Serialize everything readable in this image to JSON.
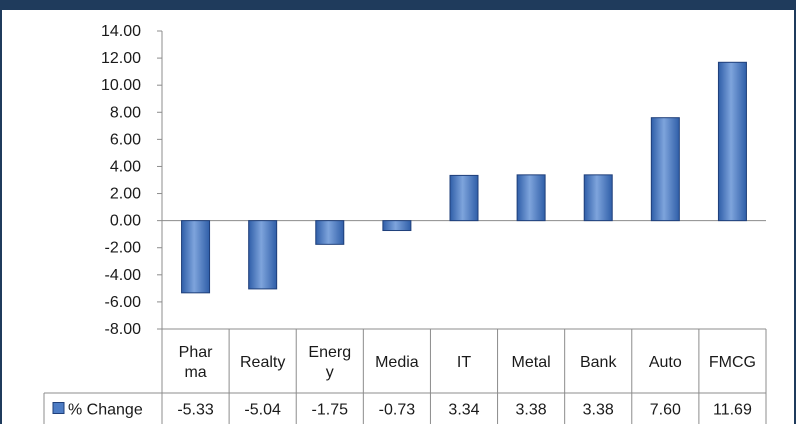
{
  "colors": {
    "bar_fill_top": "#7ea4dc",
    "bar_fill_mid": "#4d7cc4",
    "bar_fill_bottom": "#2f5ea8",
    "bar_stroke": "#1f3f7a",
    "frame": "#1f3b5c",
    "grid_line": "#8c8c8c"
  },
  "legend_icon": "square-swatch-icon",
  "chart_data": {
    "type": "bar",
    "title": "",
    "xlabel": "",
    "ylabel": "",
    "ylim": [
      -8,
      14
    ],
    "grid": false,
    "legend": "data-table-left",
    "data_table": true,
    "yticks": [
      "14.00",
      "12.00",
      "10.00",
      "8.00",
      "6.00",
      "4.00",
      "2.00",
      "0.00",
      "-2.00",
      "-4.00",
      "-6.00",
      "-8.00"
    ],
    "categories": [
      "Phar\nma",
      "Realty",
      "Energ\ny",
      "Media",
      "IT",
      "Metal",
      "Bank",
      "Auto",
      "FMCG"
    ],
    "series": [
      {
        "name": "% Change",
        "values": [
          -5.33,
          -5.04,
          -1.75,
          -0.73,
          3.34,
          3.38,
          3.38,
          7.6,
          11.69
        ],
        "labels": [
          "-5.33",
          "-5.04",
          "-1.75",
          "-0.73",
          "3.34",
          "3.38",
          "3.38",
          "7.60",
          "11.69"
        ]
      }
    ]
  }
}
